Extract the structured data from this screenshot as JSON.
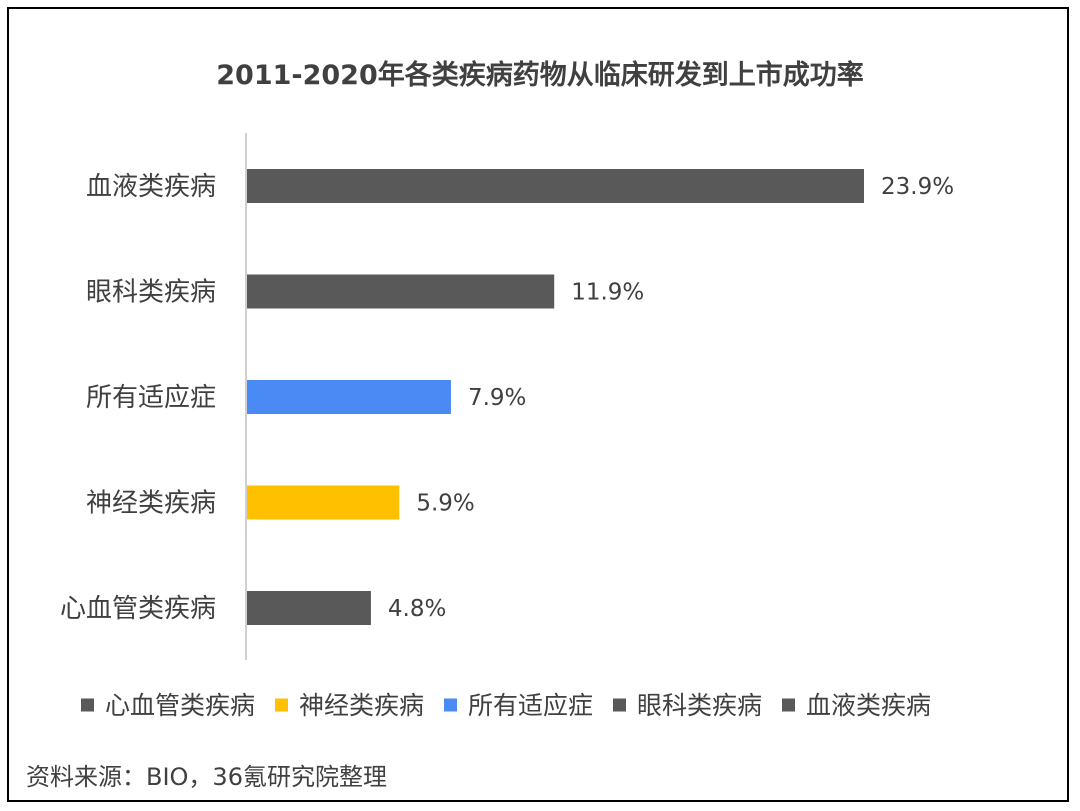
{
  "chart_data": {
    "type": "bar",
    "orientation": "horizontal",
    "title": "2011-2020年各类疾病药物从临床研发到上市成功率",
    "categories": [
      "血液类疾病",
      "眼科类疾病",
      "所有适应症",
      "神经类疾病",
      "心血管类疾病"
    ],
    "values": [
      23.9,
      11.9,
      7.9,
      5.9,
      4.8
    ],
    "value_labels": [
      "23.9%",
      "11.9%",
      "7.9%",
      "5.9%",
      "4.8%"
    ],
    "bar_colors": [
      "#595959",
      "#595959",
      "#4a8af4",
      "#ffc000",
      "#595959"
    ],
    "xlim": [
      0,
      26
    ],
    "grid": false,
    "legend_position": "bottom",
    "legend": [
      {
        "label": "心血管类疾病",
        "color": "#595959"
      },
      {
        "label": "神经类疾病",
        "color": "#ffc000"
      },
      {
        "label": "所有适应症",
        "color": "#4a8af4"
      },
      {
        "label": "眼科类疾病",
        "color": "#595959"
      },
      {
        "label": "血液类疾病",
        "color": "#595959"
      }
    ]
  },
  "source_text": "资料来源：BIO，36氪研究院整理"
}
